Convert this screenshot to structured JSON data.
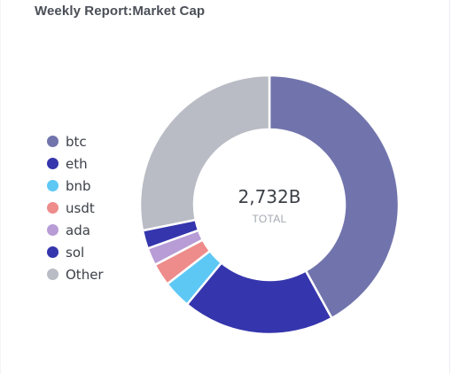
{
  "chart_data": {
    "type": "pie",
    "title": "Weekly Report:Market Cap",
    "donut": true,
    "center_value": "2,732B",
    "center_label": "TOTAL",
    "legend_position": "left",
    "slices": [
      {
        "label": "btc",
        "value": 42.0,
        "color": "#7174ac"
      },
      {
        "label": "eth",
        "value": 19.0,
        "color": "#3535ad"
      },
      {
        "label": "bnb",
        "value": 3.5,
        "color": "#5ec8f5"
      },
      {
        "label": "usdt",
        "value": 2.8,
        "color": "#ee8b8b"
      },
      {
        "label": "ada",
        "value": 2.2,
        "color": "#b79cd6"
      },
      {
        "label": "sol",
        "value": 2.3,
        "color": "#3535ad"
      },
      {
        "label": "Other",
        "value": 28.2,
        "color": "#b9bcc4"
      }
    ]
  }
}
